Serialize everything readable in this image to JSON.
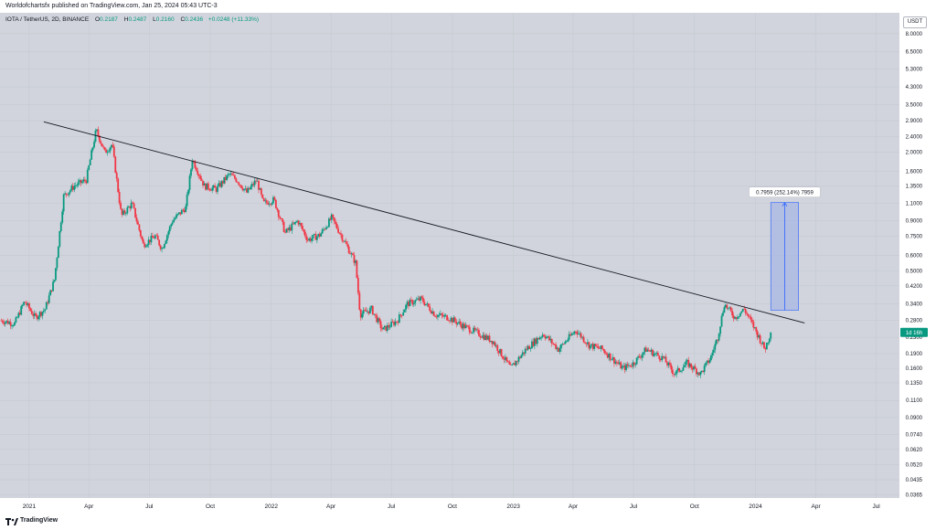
{
  "header": {
    "publisher_text": "Worldofchartsfx published on TradingView.com, Jan 25, 2024 05:43 UTC-3"
  },
  "symbol_bar": {
    "title": "IOTA / TetherUS, 2D, BINANCE",
    "open_label": "O",
    "open_value": "0.2187",
    "high_label": "H",
    "high_value": "0.2487",
    "low_label": "L",
    "low_value": "0.2160",
    "close_label": "C",
    "close_value": "0.2436",
    "change_text": "+0.0248 (+11.33%)"
  },
  "currency_button": "USDT",
  "footer": {
    "logo_text": "TradingView"
  },
  "colors": {
    "up": "#089981",
    "down": "#f23645",
    "background": "#d1d4dc",
    "trendline": "#131722",
    "measure_fill": "#a8b7e6",
    "measure_stroke": "#2962ff"
  },
  "chart_data": {
    "type": "candlestick",
    "symbol": "IOTA / TetherUS",
    "interval": "2D",
    "exchange": "BINANCE",
    "y_scale": "log",
    "ylim": [
      0.11,
      8.0
    ],
    "price_ticks": [
      "8.0000",
      "6.5000",
      "5.3000",
      "4.3000",
      "3.5000",
      "2.9000",
      "2.4000",
      "2.0000",
      "1.6000",
      "1.3500",
      "1.1000",
      "0.9000",
      "0.7500",
      "0.6000",
      "0.5000",
      "0.4200",
      "0.3400",
      "0.2800",
      "0.2300",
      "0.1900",
      "0.1600",
      "0.1350",
      "0.1100",
      "0.0900",
      "0.0740",
      "0.0620",
      "0.0520",
      "0.0435",
      "0.0365"
    ],
    "time_ticks": [
      "2021",
      "Apr",
      "Jul",
      "Oct",
      "2022",
      "Apr",
      "Jul",
      "Oct",
      "2023",
      "Apr",
      "Jul",
      "Oct",
      "2024",
      "Apr",
      "Jul"
    ],
    "price_path": [
      [
        "2020-11-20",
        0.28
      ],
      [
        "2020-12-10",
        0.27
      ],
      [
        "2020-12-25",
        0.35
      ],
      [
        "2021-01-10",
        0.29
      ],
      [
        "2021-01-25",
        0.32
      ],
      [
        "2021-02-08",
        0.45
      ],
      [
        "2021-02-22",
        1.2
      ],
      [
        "2021-03-10",
        1.35
      ],
      [
        "2021-03-28",
        1.45
      ],
      [
        "2021-04-12",
        2.6
      ],
      [
        "2021-04-25",
        2.0
      ],
      [
        "2021-05-06",
        2.2
      ],
      [
        "2021-05-20",
        0.95
      ],
      [
        "2021-06-05",
        1.1
      ],
      [
        "2021-06-22",
        0.68
      ],
      [
        "2021-07-10",
        0.75
      ],
      [
        "2021-07-20",
        0.65
      ],
      [
        "2021-08-05",
        0.9
      ],
      [
        "2021-08-25",
        1.05
      ],
      [
        "2021-09-04",
        1.85
      ],
      [
        "2021-09-22",
        1.35
      ],
      [
        "2021-10-10",
        1.3
      ],
      [
        "2021-10-30",
        1.55
      ],
      [
        "2021-11-10",
        1.45
      ],
      [
        "2021-11-25",
        1.25
      ],
      [
        "2021-12-10",
        1.45
      ],
      [
        "2021-12-20",
        1.1
      ],
      [
        "2022-01-05",
        1.15
      ],
      [
        "2022-01-22",
        0.78
      ],
      [
        "2022-02-10",
        0.9
      ],
      [
        "2022-02-25",
        0.72
      ],
      [
        "2022-03-15",
        0.76
      ],
      [
        "2022-04-02",
        0.93
      ],
      [
        "2022-04-20",
        0.72
      ],
      [
        "2022-05-08",
        0.55
      ],
      [
        "2022-05-15",
        0.3
      ],
      [
        "2022-06-01",
        0.32
      ],
      [
        "2022-06-18",
        0.25
      ],
      [
        "2022-07-10",
        0.28
      ],
      [
        "2022-07-25",
        0.34
      ],
      [
        "2022-08-15",
        0.36
      ],
      [
        "2022-09-05",
        0.3
      ],
      [
        "2022-09-25",
        0.29
      ],
      [
        "2022-10-20",
        0.26
      ],
      [
        "2022-11-10",
        0.24
      ],
      [
        "2022-12-01",
        0.22
      ],
      [
        "2022-12-28",
        0.16
      ],
      [
        "2023-01-20",
        0.2
      ],
      [
        "2023-02-15",
        0.24
      ],
      [
        "2023-03-10",
        0.2
      ],
      [
        "2023-04-05",
        0.25
      ],
      [
        "2023-04-25",
        0.21
      ],
      [
        "2023-05-15",
        0.2
      ],
      [
        "2023-06-15",
        0.16
      ],
      [
        "2023-07-01",
        0.17
      ],
      [
        "2023-07-20",
        0.2
      ],
      [
        "2023-08-15",
        0.18
      ],
      [
        "2023-09-01",
        0.15
      ],
      [
        "2023-09-20",
        0.17
      ],
      [
        "2023-10-10",
        0.15
      ],
      [
        "2023-10-25",
        0.18
      ],
      [
        "2023-11-05",
        0.23
      ],
      [
        "2023-11-15",
        0.34
      ],
      [
        "2023-12-01",
        0.29
      ],
      [
        "2023-12-15",
        0.32
      ],
      [
        "2024-01-01",
        0.25
      ],
      [
        "2024-01-15",
        0.2
      ],
      [
        "2024-01-24",
        0.2436
      ]
    ],
    "trendline": {
      "start": [
        "2021-01-23",
        2.86
      ],
      "end": [
        "2024-03-15",
        0.272
      ]
    },
    "measure": {
      "label": "0.7959 (252.14%) 7959",
      "from_price": 0.3157,
      "to_price": 1.1116,
      "from_date": "2024-01-24",
      "to_date": "2024-03-06"
    },
    "last_price_label": "1d 16h",
    "last_price": 0.2436
  }
}
